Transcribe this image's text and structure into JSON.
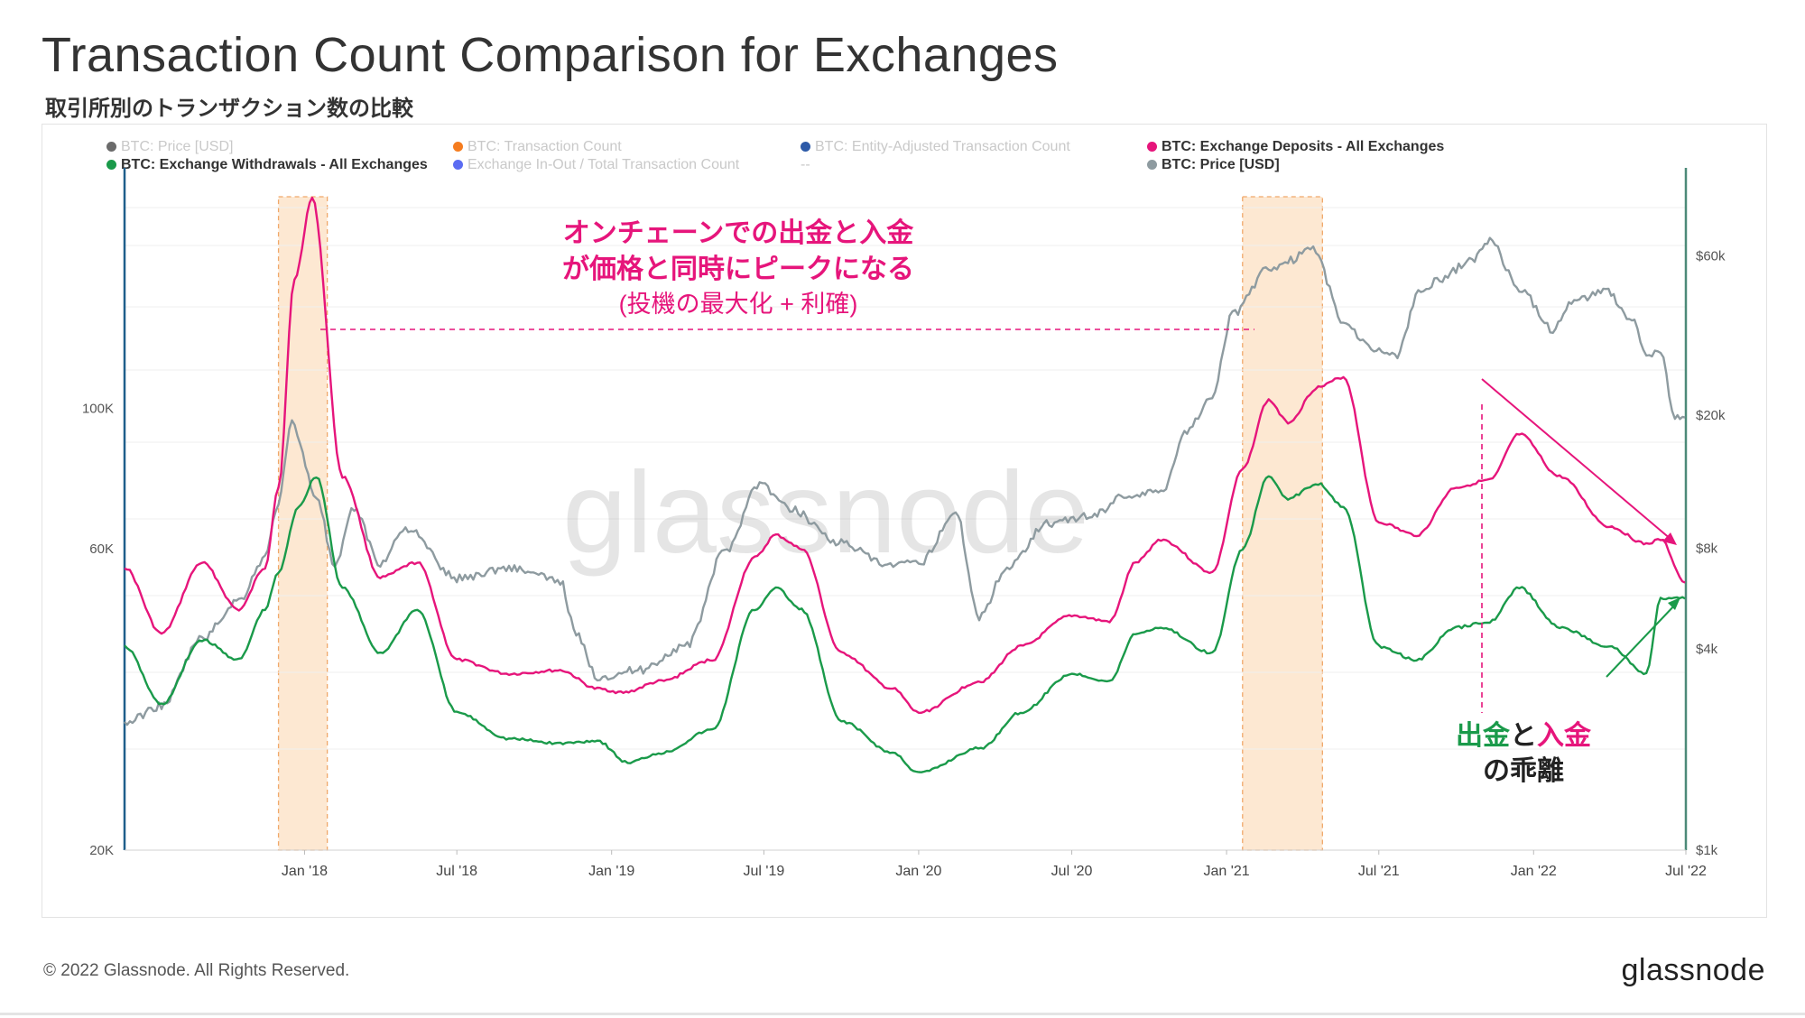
{
  "title": "Transaction Count Comparison for Exchanges",
  "subtitle": "取引所別のトランザクション数の比較",
  "footer": "© 2022 Glassnode. All Rights Reserved.",
  "brand": "glassnode",
  "watermark": "glassnode",
  "legend": [
    {
      "label": "BTC: Price [USD]",
      "color": "#6b6b6b",
      "faded": true
    },
    {
      "label": "BTC: Transaction Count",
      "color": "#f57c1f",
      "faded": true
    },
    {
      "label": "BTC: Entity-Adjusted Transaction Count",
      "color": "#2d5aa8",
      "faded": true
    },
    {
      "label": "BTC: Exchange Deposits - All Exchanges",
      "color": "#e6157b",
      "faded": false
    },
    {
      "label": "BTC: Exchange Withdrawals - All Exchanges",
      "color": "#1a9a4a",
      "faded": false
    },
    {
      "label": "Exchange In-Out / Total Transaction Count",
      "color": "#5b6cf2",
      "faded": true
    },
    {
      "label": "--",
      "color": "",
      "faded": true
    },
    {
      "label": "BTC: Price [USD]",
      "color": "#8e9ba0",
      "faded": false
    }
  ],
  "annotations": {
    "peak_line1": "オンチェーンでの出金と入金",
    "peak_line2": "が価格と同時にピークになる",
    "peak_line3": "(投機の最大化 + 利確)",
    "divergence_word1": "出金",
    "divergence_word2": "と",
    "divergence_word3": "入金",
    "divergence_line2": "の乖離"
  },
  "colors": {
    "deposits": "#e6157b",
    "withdrawals": "#1a9a4a",
    "price": "#8e9ba0",
    "highlight_fill": "#fde8d2",
    "highlight_border": "#f0a86a",
    "left_axis": "#1f5f8b",
    "right_axis": "#4c8a78"
  },
  "chart_data": {
    "type": "line",
    "x_ticks": [
      "Jan '18",
      "Jul '18",
      "Jan '19",
      "Jul '19",
      "Jan '20",
      "Jul '20",
      "Jan '21",
      "Jul '21",
      "Jan '22",
      "Jul '22"
    ],
    "y_left": {
      "scale": "log",
      "ticks": [
        "20K",
        "60K",
        "100K"
      ],
      "tick_values": [
        20000,
        60000,
        100000
      ],
      "range": [
        20000,
        240000
      ]
    },
    "y_right": {
      "scale": "log",
      "ticks": [
        "$1k",
        "$4k",
        "$8k",
        "$20k",
        "$60k"
      ],
      "tick_values": [
        1000,
        4000,
        8000,
        20000,
        60000
      ],
      "range": [
        1000,
        110000
      ]
    },
    "x_range": [
      "2017-06-01",
      "2022-07-01"
    ],
    "highlight_periods": [
      [
        "2017-12-01",
        "2018-01-28"
      ],
      [
        "2021-01-20",
        "2021-04-25"
      ]
    ],
    "series": [
      {
        "name": "BTC: Exchange Deposits - All Exchanges",
        "axis": "left",
        "x": [
          "2017-06-01",
          "2017-07-15",
          "2017-09-01",
          "2017-10-15",
          "2017-11-15",
          "2017-12-01",
          "2017-12-20",
          "2018-01-10",
          "2018-02-15",
          "2018-04-01",
          "2018-05-15",
          "2018-07-01",
          "2018-09-01",
          "2018-11-01",
          "2018-12-15",
          "2019-01-15",
          "2019-03-01",
          "2019-05-01",
          "2019-06-20",
          "2019-07-15",
          "2019-08-15",
          "2019-10-01",
          "2019-12-01",
          "2020-01-01",
          "2020-03-15",
          "2020-05-01",
          "2020-07-01",
          "2020-08-15",
          "2020-09-15",
          "2020-10-15",
          "2020-12-15",
          "2021-01-20",
          "2021-02-20",
          "2021-03-15",
          "2021-04-20",
          "2021-05-20",
          "2021-07-01",
          "2021-08-15",
          "2021-10-01",
          "2021-11-10",
          "2021-12-15",
          "2022-02-01",
          "2022-04-01",
          "2022-05-15",
          "2022-06-01",
          "2022-06-30"
        ],
        "y": [
          56000,
          44000,
          57000,
          48000,
          56000,
          75000,
          160000,
          215000,
          78000,
          54000,
          57000,
          40000,
          38000,
          38500,
          36000,
          35500,
          37000,
          40000,
          58000,
          63000,
          60000,
          41000,
          36000,
          33000,
          37000,
          42000,
          47000,
          46000,
          57000,
          62000,
          55000,
          80000,
          103000,
          95000,
          108000,
          112000,
          66000,
          63000,
          75000,
          77000,
          91000,
          78000,
          65000,
          61000,
          62000,
          53000
        ]
      },
      {
        "name": "BTC: Exchange Withdrawals - All Exchanges",
        "axis": "left",
        "x": [
          "2017-06-01",
          "2017-07-15",
          "2017-09-01",
          "2017-10-15",
          "2017-11-15",
          "2017-12-01",
          "2017-12-25",
          "2018-01-15",
          "2018-02-15",
          "2018-04-01",
          "2018-05-15",
          "2018-07-01",
          "2018-09-01",
          "2018-11-01",
          "2018-12-15",
          "2019-01-20",
          "2019-03-01",
          "2019-05-01",
          "2019-06-20",
          "2019-07-15",
          "2019-08-15",
          "2019-10-01",
          "2019-12-01",
          "2020-01-01",
          "2020-03-15",
          "2020-05-01",
          "2020-07-01",
          "2020-08-15",
          "2020-09-15",
          "2020-10-15",
          "2020-12-15",
          "2021-01-20",
          "2021-02-20",
          "2021-03-15",
          "2021-04-20",
          "2021-05-20",
          "2021-07-01",
          "2021-08-15",
          "2021-10-01",
          "2021-11-10",
          "2021-12-15",
          "2022-02-01",
          "2022-04-01",
          "2022-05-15",
          "2022-06-01",
          "2022-06-30"
        ],
        "y": [
          42000,
          34000,
          43000,
          40000,
          48000,
          55000,
          70000,
          78000,
          52000,
          41000,
          48000,
          33000,
          30000,
          29500,
          29800,
          27500,
          28500,
          31000,
          48000,
          52000,
          48000,
          32000,
          28500,
          26500,
          29000,
          33000,
          38000,
          37000,
          44000,
          45000,
          41000,
          60000,
          78000,
          72000,
          76000,
          70000,
          42000,
          40000,
          45000,
          46000,
          52000,
          45000,
          42000,
          38000,
          50000,
          50000
        ]
      },
      {
        "name": "BTC: Price [USD]",
        "axis": "right",
        "x": [
          "2017-06-01",
          "2017-07-15",
          "2017-09-01",
          "2017-10-15",
          "2017-11-15",
          "2017-12-01",
          "2017-12-17",
          "2018-01-15",
          "2018-02-06",
          "2018-03-01",
          "2018-04-01",
          "2018-05-01",
          "2018-07-01",
          "2018-09-01",
          "2018-11-01",
          "2018-11-20",
          "2018-12-15",
          "2019-02-01",
          "2019-04-01",
          "2019-05-15",
          "2019-06-26",
          "2019-08-01",
          "2019-10-01",
          "2019-11-25",
          "2020-01-01",
          "2020-02-14",
          "2020-03-13",
          "2020-04-15",
          "2020-06-01",
          "2020-07-25",
          "2020-09-01",
          "2020-10-15",
          "2020-11-15",
          "2020-12-15",
          "2021-01-08",
          "2021-02-20",
          "2021-03-15",
          "2021-04-14",
          "2021-05-20",
          "2021-06-22",
          "2021-07-20",
          "2021-08-20",
          "2021-09-05",
          "2021-10-20",
          "2021-11-10",
          "2021-12-15",
          "2022-01-24",
          "2022-02-15",
          "2022-03-28",
          "2022-05-01",
          "2022-05-15",
          "2022-06-01",
          "2022-06-18",
          "2022-06-30"
        ],
        "y": [
          2400,
          2700,
          4300,
          5600,
          7500,
          11000,
          19000,
          11500,
          7000,
          10500,
          7200,
          9200,
          6500,
          7000,
          6400,
          4400,
          3300,
          3450,
          4100,
          7800,
          12500,
          10500,
          8300,
          7100,
          7200,
          10200,
          5000,
          7000,
          9500,
          10000,
          11500,
          11800,
          18000,
          23000,
          40000,
          55000,
          58000,
          63000,
          38000,
          32000,
          30000,
          47000,
          50000,
          58000,
          67000,
          48000,
          36000,
          44000,
          47000,
          38000,
          30000,
          31000,
          19500,
          19700
        ]
      }
    ]
  }
}
